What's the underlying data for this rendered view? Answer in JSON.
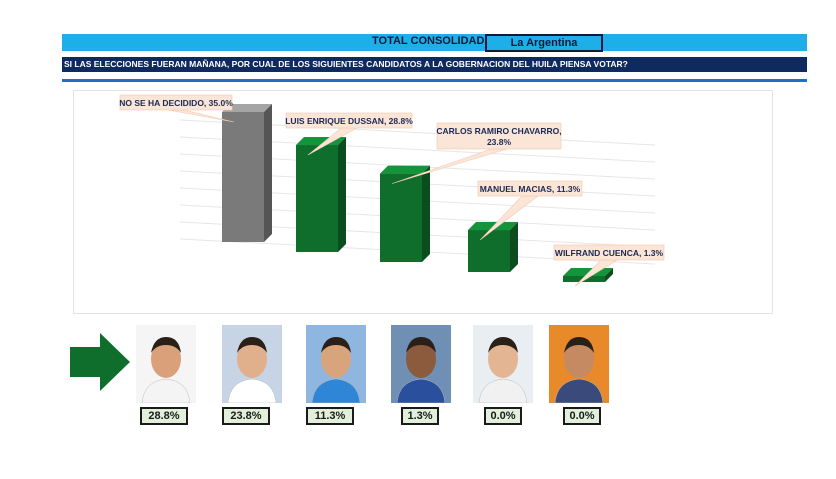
{
  "header": {
    "title": "TOTAL CONSOLIDADO",
    "location": "La Argentina",
    "question": "SI LAS ELECCIONES FUERAN MAÑANA, POR CUAL DE LOS SIGUIENTES CANDIDATOS A LA GOBERNACION DEL HUILA PIENSA VOTAR?"
  },
  "colors": {
    "undecided": "#7a7a7a",
    "candidate": "#0f6e2c",
    "header_bar": "#1eaee8",
    "question_bar": "#0f2a5f"
  },
  "chart_data": {
    "type": "bar",
    "categories": [
      "NO SE HA DECIDIDO",
      "LUIS ENRIQUE DUSSAN",
      "CARLOS RAMIRO CHAVARRO",
      "MANUEL MACIAS",
      "WILFRAND CUENCA"
    ],
    "values": [
      35.0,
      28.8,
      23.8,
      11.3,
      1.3
    ],
    "data_labels": [
      "NO SE HA DECIDIDO, 35.0%",
      "LUIS ENRIQUE DUSSAN, 28.8%",
      "CARLOS RAMIRO CHAVARRO, 23.8%",
      "MANUEL MACIAS, 11.3%",
      "WILFRAND CUENCA, 1.3%"
    ],
    "ylim": [
      0,
      35
    ],
    "grid": true,
    "legend": "none"
  },
  "candidates": [
    {
      "pct": "28.8%",
      "icon": "candidate-photo"
    },
    {
      "pct": "23.8%",
      "icon": "candidate-photo"
    },
    {
      "pct": "11.3%",
      "icon": "candidate-photo"
    },
    {
      "pct": "1.3%",
      "icon": "candidate-photo"
    },
    {
      "pct": "0.0%",
      "icon": "candidate-photo"
    },
    {
      "pct": "0.0%",
      "icon": "candidate-photo"
    }
  ]
}
